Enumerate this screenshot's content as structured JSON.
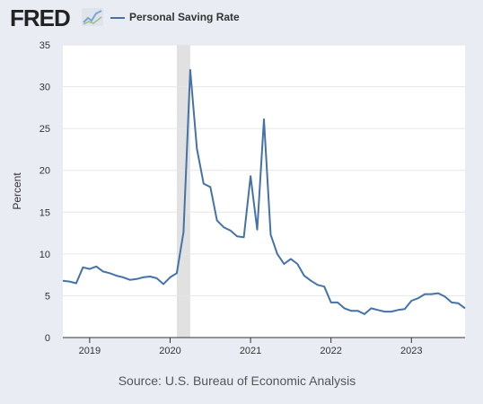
{
  "header": {
    "logo_text": "FRED",
    "logo_icon": "trend-line-icon",
    "legend_label": "Personal Saving Rate"
  },
  "source_text": "Source: U.S. Bureau of Economic Analysis",
  "colors": {
    "line": "#4572a7",
    "recession": "#e1e1e1",
    "grid": "#e6e6e6",
    "background": "#eaecf4",
    "plot_background": "#ffffff"
  },
  "chart_data": {
    "type": "line",
    "title": "Personal Saving Rate",
    "xlabel": "",
    "ylabel": "Percent",
    "ylim": [
      0,
      35
    ],
    "yticks": [
      0,
      5,
      10,
      15,
      20,
      25,
      30,
      35
    ],
    "xlim": [
      "2018-09",
      "2023-09"
    ],
    "xticks": [
      {
        "label": "2019",
        "date": "2019-01"
      },
      {
        "label": "2020",
        "date": "2020-01"
      },
      {
        "label": "2021",
        "date": "2021-01"
      },
      {
        "label": "2022",
        "date": "2022-01"
      },
      {
        "label": "2023",
        "date": "2023-01"
      }
    ],
    "grid": true,
    "recession_shading": [
      {
        "start": "2020-02",
        "end": "2020-04"
      }
    ],
    "series": [
      {
        "name": "Personal Saving Rate",
        "points": [
          [
            "2018-09",
            6.8
          ],
          [
            "2018-10",
            6.7
          ],
          [
            "2018-11",
            6.5
          ],
          [
            "2018-12",
            8.4
          ],
          [
            "2019-01",
            8.2
          ],
          [
            "2019-02",
            8.5
          ],
          [
            "2019-03",
            7.9
          ],
          [
            "2019-04",
            7.7
          ],
          [
            "2019-05",
            7.4
          ],
          [
            "2019-06",
            7.2
          ],
          [
            "2019-07",
            6.9
          ],
          [
            "2019-08",
            7.0
          ],
          [
            "2019-09",
            7.2
          ],
          [
            "2019-10",
            7.3
          ],
          [
            "2019-11",
            7.1
          ],
          [
            "2019-12",
            6.4
          ],
          [
            "2020-01",
            7.2
          ],
          [
            "2020-02",
            7.7
          ],
          [
            "2020-03",
            12.6
          ],
          [
            "2020-04",
            32.0
          ],
          [
            "2020-05",
            22.6
          ],
          [
            "2020-06",
            18.4
          ],
          [
            "2020-07",
            18.0
          ],
          [
            "2020-08",
            14.0
          ],
          [
            "2020-09",
            13.2
          ],
          [
            "2020-10",
            12.8
          ],
          [
            "2020-11",
            12.1
          ],
          [
            "2020-12",
            12.0
          ],
          [
            "2021-01",
            19.3
          ],
          [
            "2021-02",
            12.9
          ],
          [
            "2021-03",
            26.1
          ],
          [
            "2021-04",
            12.3
          ],
          [
            "2021-05",
            10.0
          ],
          [
            "2021-06",
            8.8
          ],
          [
            "2021-07",
            9.4
          ],
          [
            "2021-08",
            8.8
          ],
          [
            "2021-09",
            7.4
          ],
          [
            "2021-10",
            6.8
          ],
          [
            "2021-11",
            6.3
          ],
          [
            "2021-12",
            6.1
          ],
          [
            "2022-01",
            4.2
          ],
          [
            "2022-02",
            4.2
          ],
          [
            "2022-03",
            3.5
          ],
          [
            "2022-04",
            3.2
          ],
          [
            "2022-05",
            3.2
          ],
          [
            "2022-06",
            2.8
          ],
          [
            "2022-07",
            3.5
          ],
          [
            "2022-08",
            3.3
          ],
          [
            "2022-09",
            3.1
          ],
          [
            "2022-10",
            3.1
          ],
          [
            "2022-11",
            3.3
          ],
          [
            "2022-12",
            3.4
          ],
          [
            "2023-01",
            4.4
          ],
          [
            "2023-02",
            4.7
          ],
          [
            "2023-03",
            5.2
          ],
          [
            "2023-04",
            5.2
          ],
          [
            "2023-05",
            5.3
          ],
          [
            "2023-06",
            4.9
          ],
          [
            "2023-07",
            4.2
          ],
          [
            "2023-08",
            4.1
          ],
          [
            "2023-09",
            3.5
          ]
        ]
      }
    ]
  }
}
